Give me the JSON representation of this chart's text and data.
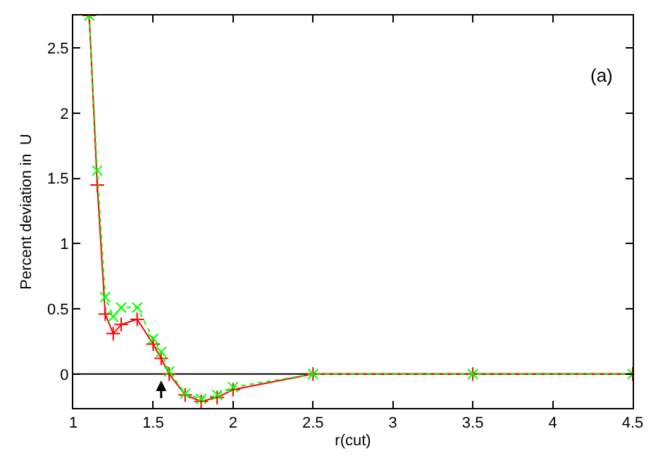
{
  "chart_data": {
    "type": "line",
    "xlabel": "r(cut)",
    "ylabel": "Percent deviation in  U",
    "x": [
      1.1,
      1.15,
      1.2,
      1.25,
      1.3,
      1.4,
      1.5,
      1.55,
      1.6,
      1.7,
      1.8,
      1.9,
      2.0,
      2.5,
      3.5,
      4.5
    ],
    "series": [
      {
        "color": "#ff0000",
        "marker": "cross",
        "line_style": "solid",
        "values": [
          2.75,
          1.45,
          0.46,
          0.31,
          0.38,
          0.42,
          0.23,
          0.12,
          0.0,
          -0.16,
          -0.21,
          -0.18,
          -0.12,
          0.0,
          0.0,
          0.0
        ]
      },
      {
        "color": "#00ff00",
        "marker": "x",
        "line_style": "dotted",
        "values": [
          2.75,
          1.56,
          0.59,
          0.44,
          0.51,
          0.51,
          0.27,
          0.17,
          0.02,
          -0.15,
          -0.19,
          -0.16,
          -0.1,
          0.0,
          0.0,
          0.0
        ]
      }
    ],
    "xlim": [
      1,
      4.5
    ],
    "xticks": [
      1,
      1.5,
      2,
      2.5,
      3,
      3.5,
      4,
      4.5
    ],
    "ylim": [
      -0.26,
      2.75
    ],
    "yticks": [
      0,
      0.5,
      1,
      1.5,
      2,
      2.5
    ],
    "ref_lines": [
      {
        "axis": "y",
        "value": 0,
        "color": "#000000"
      }
    ],
    "annotations": [
      "(a)"
    ],
    "grid": false,
    "legend": false
  }
}
